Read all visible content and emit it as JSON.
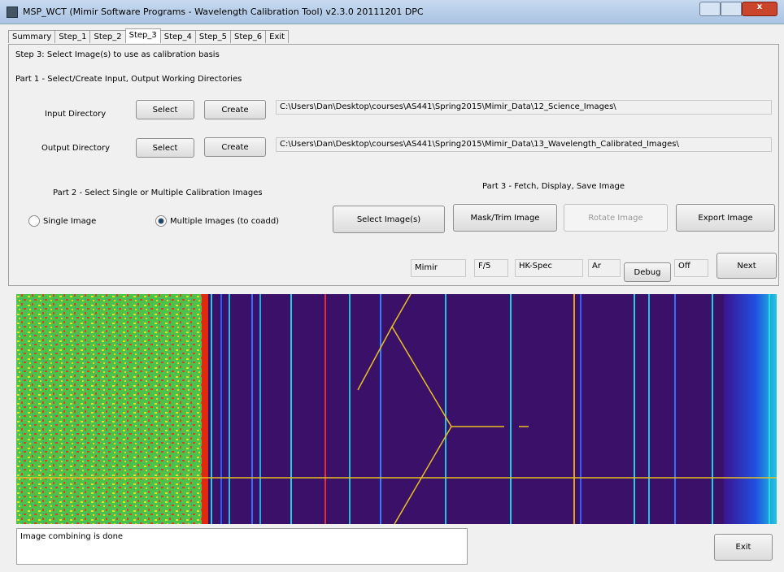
{
  "window": {
    "title": "MSP_WCT (Mimir Software Programs - Wavelength Calibration Tool) v2.3.0 20111201 DPC"
  },
  "tabs": [
    "Summary",
    "Step_1",
    "Step_2",
    "Step_3",
    "Step_4",
    "Step_5",
    "Step_6",
    "Exit"
  ],
  "panel": {
    "heading": "Step 3: Select Image(s) to use as calibration basis",
    "part1": "Part 1 - Select/Create Input, Output Working Directories",
    "input": {
      "label": "Input Directory",
      "select": "Select",
      "create": "Create",
      "path": "C:\\Users\\Dan\\Desktop\\courses\\AS441\\Spring2015\\Mimir_Data\\12_Science_Images\\"
    },
    "output": {
      "label": "Output Directory",
      "select": "Select",
      "create": "Create",
      "path": "C:\\Users\\Dan\\Desktop\\courses\\AS441\\Spring2015\\Mimir_Data\\13_Wavelength_Calibrated_Images\\"
    },
    "part2": "Part 2 - Select Single or Multiple Calibration Images",
    "single": "Single Image",
    "multiple": "Multiple Images (to coadd)",
    "part3": "Part 3 - Fetch, Display, Save Image",
    "buttons": [
      "Select Image(s)",
      "Mask/Trim Image",
      "Rotate Image",
      "Export Image"
    ],
    "fields": [
      "Mimir",
      "F/5",
      "HK-Spec",
      "Ar"
    ],
    "debug": "Debug",
    "debug_state": "Off",
    "next": "Next"
  },
  "status": {
    "message": "Image combining is done",
    "exit": "Exit"
  }
}
